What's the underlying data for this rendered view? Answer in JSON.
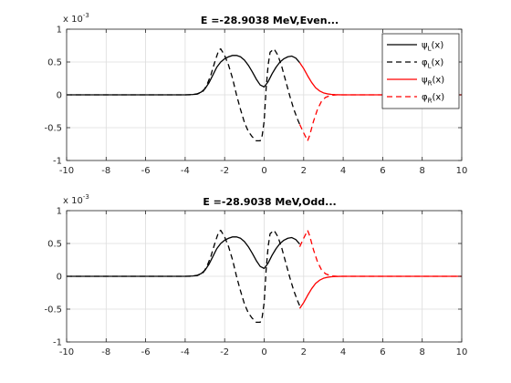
{
  "chart_data": [
    {
      "type": "line",
      "title": "E =-28.9038 MeV,Even...",
      "xlim": [
        -10,
        10
      ],
      "ylim": [
        -1,
        1
      ],
      "y_scale_factor_label": "x 10",
      "y_scale_exponent": "-3",
      "xticks": [
        "-10",
        "-8",
        "-6",
        "-4",
        "-2",
        "0",
        "2",
        "4",
        "6",
        "8",
        "10"
      ],
      "yticks": [
        "-1",
        "-0.5",
        "0",
        "0.5",
        "1"
      ],
      "grid": true,
      "legend_position": "top-right",
      "legend": [
        {
          "sym": "ψ",
          "sub": "L",
          "tail": "(x)",
          "color": "#000000",
          "dash": false
        },
        {
          "sym": "φ",
          "sub": "L",
          "tail": "(x)",
          "color": "#000000",
          "dash": true
        },
        {
          "sym": "ψ",
          "sub": "R",
          "tail": "(x)",
          "color": "#ff0000",
          "dash": false
        },
        {
          "sym": "φ",
          "sub": "R",
          "tail": "(x)",
          "color": "#ff0000",
          "dash": true
        }
      ],
      "series": [
        {
          "name": "ψL(x)",
          "color": "#000000",
          "dash": false,
          "x": [
            -10,
            -4.0,
            -3.6,
            -3.4,
            -3.2,
            -3.0,
            -2.8,
            -2.6,
            -2.4,
            -2.2,
            -2.0,
            -1.8,
            -1.6,
            -1.4,
            -1.2,
            -1.0,
            -0.8,
            -0.6,
            -0.4,
            -0.2,
            0.0,
            0.2,
            0.4,
            0.6,
            0.8,
            1.0,
            1.2,
            1.4,
            1.6,
            1.8
          ],
          "y": [
            0,
            0,
            0.005,
            0.015,
            0.04,
            0.09,
            0.18,
            0.3,
            0.42,
            0.5,
            0.55,
            0.58,
            0.6,
            0.6,
            0.58,
            0.53,
            0.45,
            0.35,
            0.24,
            0.15,
            0.12,
            0.2,
            0.32,
            0.42,
            0.5,
            0.55,
            0.58,
            0.59,
            0.56,
            0.49
          ]
        },
        {
          "name": "φL(x)",
          "color": "#000000",
          "dash": true,
          "x": [
            -10,
            -3.8,
            -3.4,
            -3.1,
            -2.9,
            -2.7,
            -2.5,
            -2.3,
            -2.2,
            -2.0,
            -1.8,
            -1.6,
            -1.4,
            -1.2,
            -1.0,
            -0.8,
            -0.6,
            -0.4,
            -0.2,
            -0.1,
            0.0,
            0.1,
            0.2,
            0.3,
            0.5,
            0.7,
            0.9,
            1.1,
            1.3,
            1.5,
            1.7,
            1.8
          ],
          "y": [
            0,
            0,
            0.01,
            0.05,
            0.15,
            0.3,
            0.5,
            0.68,
            0.7,
            0.6,
            0.45,
            0.25,
            0.0,
            -0.22,
            -0.42,
            -0.56,
            -0.64,
            -0.7,
            -0.7,
            -0.62,
            -0.4,
            0.1,
            0.45,
            0.65,
            0.7,
            0.6,
            0.42,
            0.2,
            -0.02,
            -0.22,
            -0.38,
            -0.45
          ]
        },
        {
          "name": "ψR(x)",
          "color": "#ff0000",
          "dash": false,
          "x": [
            1.8,
            2.0,
            2.2,
            2.4,
            2.6,
            2.8,
            3.0,
            3.2,
            3.4,
            3.6,
            3.8,
            4.0,
            10
          ],
          "y": [
            0.49,
            0.4,
            0.29,
            0.19,
            0.11,
            0.06,
            0.03,
            0.015,
            0.007,
            0.003,
            0.001,
            0,
            0
          ]
        },
        {
          "name": "φR(x)",
          "color": "#ff0000",
          "dash": true,
          "x": [
            1.8,
            2.0,
            2.2,
            2.3,
            2.5,
            2.7,
            2.9,
            3.1,
            3.3,
            3.5,
            3.7,
            4.0,
            10
          ],
          "y": [
            -0.45,
            -0.58,
            -0.7,
            -0.62,
            -0.4,
            -0.22,
            -0.1,
            -0.04,
            -0.015,
            -0.005,
            0,
            0,
            0
          ]
        }
      ]
    },
    {
      "type": "line",
      "title": "E =-28.9038 MeV,Odd...",
      "xlim": [
        -10,
        10
      ],
      "ylim": [
        -1,
        1
      ],
      "y_scale_factor_label": "x 10",
      "y_scale_exponent": "-3",
      "xticks": [
        "-10",
        "-8",
        "-6",
        "-4",
        "-2",
        "0",
        "2",
        "4",
        "6",
        "8",
        "10"
      ],
      "yticks": [
        "-1",
        "-0.5",
        "0",
        "0.5",
        "1"
      ],
      "grid": true,
      "series": [
        {
          "name": "ψL(x)",
          "color": "#000000",
          "dash": false,
          "x": [
            -10,
            -4.0,
            -3.6,
            -3.4,
            -3.2,
            -3.0,
            -2.8,
            -2.6,
            -2.4,
            -2.2,
            -2.0,
            -1.8,
            -1.6,
            -1.4,
            -1.2,
            -1.0,
            -0.8,
            -0.6,
            -0.4,
            -0.2,
            0.0,
            0.2,
            0.4,
            0.6,
            0.8,
            1.0,
            1.2,
            1.4,
            1.6,
            1.8
          ],
          "y": [
            0,
            0,
            0.005,
            0.015,
            0.04,
            0.09,
            0.18,
            0.3,
            0.42,
            0.5,
            0.55,
            0.58,
            0.6,
            0.6,
            0.58,
            0.53,
            0.45,
            0.35,
            0.24,
            0.15,
            0.12,
            0.2,
            0.32,
            0.42,
            0.5,
            0.55,
            0.58,
            0.59,
            0.56,
            0.49
          ]
        },
        {
          "name": "φL(x)",
          "color": "#000000",
          "dash": true,
          "x": [
            -10,
            -3.8,
            -3.4,
            -3.1,
            -2.9,
            -2.7,
            -2.5,
            -2.3,
            -2.2,
            -2.0,
            -1.8,
            -1.6,
            -1.4,
            -1.2,
            -1.0,
            -0.8,
            -0.6,
            -0.4,
            -0.2,
            -0.1,
            0.0,
            0.1,
            0.2,
            0.3,
            0.5,
            0.7,
            0.9,
            1.1,
            1.3,
            1.5,
            1.7,
            1.8
          ],
          "y": [
            0,
            0,
            0.01,
            0.05,
            0.15,
            0.3,
            0.5,
            0.68,
            0.7,
            0.6,
            0.45,
            0.25,
            0.0,
            -0.22,
            -0.42,
            -0.56,
            -0.64,
            -0.7,
            -0.7,
            -0.62,
            -0.4,
            0.1,
            0.45,
            0.65,
            0.7,
            0.6,
            0.42,
            0.2,
            -0.02,
            -0.22,
            -0.38,
            -0.45
          ]
        },
        {
          "name": "ψR(x)",
          "color": "#ff0000",
          "dash": false,
          "x": [
            1.8,
            2.0,
            2.2,
            2.4,
            2.6,
            2.8,
            3.0,
            3.2,
            3.4,
            3.6,
            3.8,
            4.0,
            10
          ],
          "y": [
            -0.49,
            -0.4,
            -0.29,
            -0.19,
            -0.11,
            -0.06,
            -0.03,
            -0.015,
            -0.007,
            -0.003,
            -0.001,
            0,
            0
          ]
        },
        {
          "name": "φR(x)",
          "color": "#ff0000",
          "dash": true,
          "x": [
            1.8,
            2.0,
            2.2,
            2.3,
            2.5,
            2.7,
            2.9,
            3.1,
            3.3,
            3.5,
            3.7,
            4.0,
            10
          ],
          "y": [
            0.45,
            0.58,
            0.7,
            0.62,
            0.4,
            0.22,
            0.1,
            0.04,
            0.015,
            0.005,
            0,
            0,
            0
          ]
        }
      ]
    }
  ]
}
